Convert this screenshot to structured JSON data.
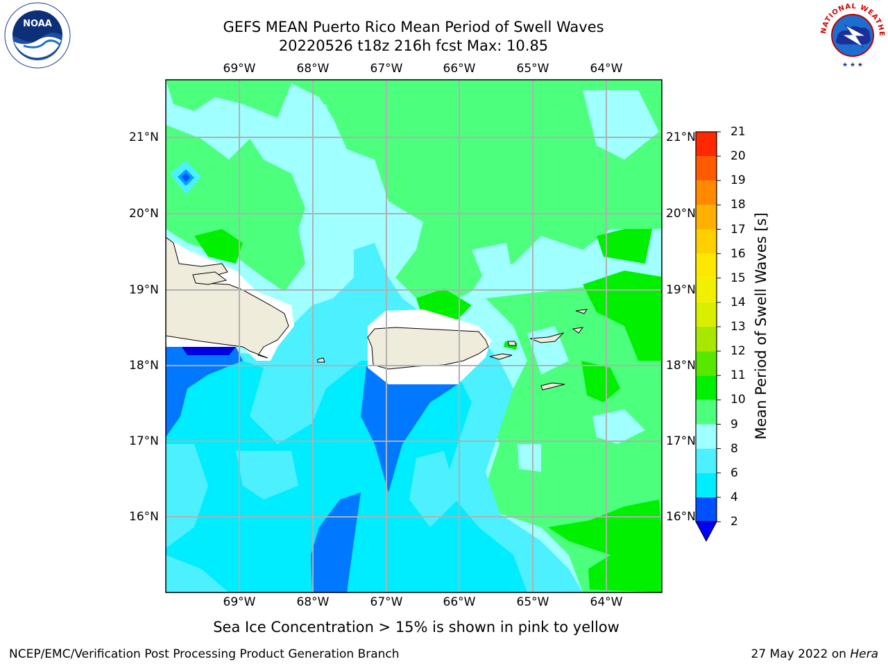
{
  "title": {
    "line1": "GEFS MEAN Puerto Rico Mean Period of Swell Waves",
    "line2": "20220526 t18z 216h fcst   Max: 10.85"
  },
  "map": {
    "lon_labels": [
      "69°W",
      "68°W",
      "67°W",
      "66°W",
      "65°W",
      "64°W"
    ],
    "lat_labels": [
      "21°N",
      "20°N",
      "19°N",
      "18°N",
      "17°N",
      "16°N"
    ]
  },
  "colorbar": {
    "label": "Mean Period of Swell Waves [s]",
    "ticks": [
      "2",
      "4",
      "6",
      "8",
      "9",
      "10",
      "11",
      "12",
      "13",
      "14",
      "15",
      "16",
      "17",
      "18",
      "19",
      "20",
      "21"
    ],
    "colors": [
      "#0050ff",
      "#00ecff",
      "#4cf0ff",
      "#a0ffff",
      "#4cff7c",
      "#00f000",
      "#58e800",
      "#a8e800",
      "#d8f000",
      "#f0f000",
      "#ffe800",
      "#ffd000",
      "#ffb000",
      "#ff8a00",
      "#ff5a00",
      "#ff2800"
    ],
    "extend_color": "#0000ff"
  },
  "palette": {
    "land": "#efecdc",
    "mask": "#ffffff",
    "grid": "#b0b0b0"
  },
  "logos": {
    "noaa_text": "NOAA",
    "nws_text": "NATIONAL WEATHER SERVICE"
  },
  "subtitle": "Sea Ice Concentration > 15% is shown in pink to yellow",
  "footer": {
    "left": "NCEP/EMC/Verification Post Processing Product Generation Branch",
    "right_date": "27 May 2022 on",
    "right_machine": "Hera"
  }
}
